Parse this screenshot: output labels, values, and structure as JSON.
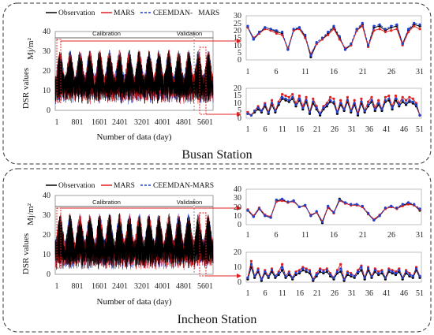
{
  "legend": [
    {
      "name": "Observation",
      "color": "#000000",
      "dash": ""
    },
    {
      "name": "MARS",
      "color": "#e02020",
      "dash": ""
    },
    {
      "name": "CEEMDAN-MARS",
      "color": "#1f3fd0",
      "dash": "3,2"
    }
  ],
  "panels": [
    {
      "station": "Busan Station",
      "legend_labels": [
        "Observation",
        "MARS",
        "CEEMDAN-   MARS"
      ],
      "calibration_label": "Calibration",
      "validation_label": "Validation",
      "ylabel": "DSR values",
      "ylabel_unit": "Mj/m²",
      "xlabel": "Number of data (day)"
    },
    {
      "station": "Incheon Station",
      "legend_labels": [
        "Observation",
        "MARS",
        "CEEMDAN-MARS"
      ],
      "calibration_label": "Calibration",
      "validation_label": "Validation",
      "ylabel": "DSR values",
      "ylabel_unit": "Mj/m²",
      "xlabel": "Number of data (day)"
    }
  ],
  "chart_data": [
    {
      "type": "line",
      "station": "Busan Station",
      "xlabel": "Number of data (day)",
      "ylabel": "DSR values (Mj/m²)",
      "ylim": [
        0,
        40
      ],
      "xlim": [
        1,
        6000
      ],
      "x_ticks": [
        1,
        801,
        1601,
        2401,
        3201,
        4001,
        4801,
        5601
      ],
      "y_ticks": [
        0,
        10,
        20,
        30,
        40
      ],
      "segments": [
        {
          "name": "Calibration"
        },
        {
          "name": "Validation"
        }
      ],
      "series": [
        {
          "name": "Observation",
          "color": "#000000"
        },
        {
          "name": "MARS",
          "color": "#e02020"
        },
        {
          "name": "CEEMDAN-   MARS",
          "color": "#1f3fd0"
        }
      ],
      "cycles": 16,
      "peak_range": [
        24,
        31
      ],
      "low_range": [
        3,
        8
      ]
    },
    {
      "type": "line",
      "station": "Busan Station",
      "x_ticks": [
        1,
        6,
        11,
        16,
        21,
        26,
        31
      ],
      "y_ticks": [
        0,
        5,
        10,
        15,
        20,
        25,
        30
      ],
      "ylim": [
        0,
        30
      ],
      "series": [
        {
          "name": "Observation",
          "values": [
            22,
            14,
            18,
            22,
            21,
            19,
            18,
            7,
            20,
            22,
            16,
            2,
            11,
            14,
            18,
            22,
            15,
            7,
            10,
            20,
            24,
            9,
            22,
            23,
            20,
            22,
            23,
            11,
            20,
            24,
            23
          ]
        },
        {
          "name": "MARS",
          "values": [
            22,
            15,
            18,
            21,
            20,
            18,
            17,
            8,
            20,
            21,
            15,
            4,
            11,
            14,
            17,
            21,
            14,
            8,
            10,
            20,
            23,
            9,
            20,
            21,
            19,
            20,
            21,
            10,
            19,
            23,
            21
          ]
        },
        {
          "name": "CEEMDAN-   MARS",
          "values": [
            23,
            14,
            19,
            22,
            21,
            20,
            19,
            7,
            21,
            22,
            17,
            3,
            12,
            15,
            19,
            23,
            16,
            7,
            11,
            21,
            25,
            10,
            23,
            24,
            21,
            23,
            24,
            11,
            21,
            25,
            24
          ]
        }
      ]
    },
    {
      "type": "line",
      "station": "Busan Station",
      "x_ticks": [
        1,
        6,
        11,
        16,
        21,
        26,
        31,
        36,
        41,
        46,
        51
      ],
      "y_ticks": [
        0,
        5,
        10,
        15,
        20
      ],
      "ylim": [
        0,
        20
      ],
      "series": [
        {
          "name": "Observation",
          "values": [
            3,
            2,
            4,
            6,
            4,
            8,
            3,
            9,
            4,
            9,
            13,
            12,
            11,
            13,
            8,
            12,
            6,
            11,
            3,
            10,
            6,
            2,
            6,
            8,
            11,
            10,
            3,
            9,
            5,
            11,
            4,
            9,
            2,
            10,
            4,
            8,
            11,
            5,
            9,
            5,
            11,
            12,
            6,
            12,
            8,
            11,
            9,
            11,
            10,
            8,
            2
          ]
        },
        {
          "name": "MARS",
          "values": [
            4,
            2,
            5,
            8,
            5,
            10,
            4,
            12,
            5,
            11,
            16,
            15,
            14,
            16,
            10,
            15,
            8,
            14,
            4,
            13,
            8,
            3,
            8,
            10,
            14,
            13,
            4,
            12,
            6,
            14,
            5,
            12,
            3,
            13,
            5,
            11,
            14,
            7,
            12,
            6,
            14,
            15,
            8,
            15,
            10,
            14,
            12,
            14,
            13,
            10,
            2
          ]
        },
        {
          "name": "CEEMDAN-   MARS",
          "values": [
            3,
            2,
            5,
            7,
            5,
            9,
            4,
            10,
            5,
            10,
            14,
            13,
            12,
            14,
            9,
            13,
            7,
            12,
            4,
            11,
            7,
            3,
            7,
            9,
            12,
            11,
            4,
            10,
            6,
            12,
            5,
            10,
            3,
            11,
            5,
            9,
            12,
            6,
            10,
            6,
            12,
            13,
            7,
            13,
            9,
            12,
            10,
            12,
            11,
            9,
            2
          ]
        }
      ]
    },
    {
      "type": "line",
      "station": "Incheon Station",
      "xlabel": "Number of data (day)",
      "ylabel": "DSR values (Mj/m²)",
      "ylim": [
        0,
        40
      ],
      "xlim": [
        1,
        6000
      ],
      "x_ticks": [
        1,
        801,
        1601,
        2401,
        3201,
        4001,
        4801,
        5601
      ],
      "y_ticks": [
        0,
        10,
        20,
        30,
        40
      ],
      "segments": [
        {
          "name": "Calibration"
        },
        {
          "name": "Validation"
        }
      ],
      "series": [
        {
          "name": "Observation",
          "color": "#000000"
        },
        {
          "name": "MARS",
          "color": "#e02020"
        },
        {
          "name": "CEEMDAN-MARS",
          "color": "#1f3fd0"
        }
      ],
      "cycles": 16,
      "peak_range": [
        24,
        31
      ],
      "low_range": [
        2,
        7
      ]
    },
    {
      "type": "line",
      "station": "Incheon Station",
      "x_ticks": [
        1,
        6,
        11,
        16,
        21,
        26,
        31
      ],
      "y_ticks": [
        0,
        10,
        20,
        30,
        40
      ],
      "ylim": [
        0,
        40
      ],
      "series": [
        {
          "name": "Observation",
          "values": [
            16,
            9,
            18,
            10,
            8,
            27,
            28,
            25,
            27,
            20,
            22,
            10,
            14,
            2,
            20,
            13,
            29,
            24,
            22,
            22,
            20,
            12,
            5,
            10,
            18,
            20,
            18,
            22,
            24,
            22,
            16
          ]
        },
        {
          "name": "MARS",
          "values": [
            17,
            10,
            19,
            11,
            9,
            26,
            27,
            25,
            26,
            20,
            21,
            11,
            14,
            4,
            19,
            13,
            27,
            24,
            22,
            22,
            20,
            12,
            6,
            11,
            18,
            20,
            18,
            21,
            23,
            22,
            17
          ]
        },
        {
          "name": "CEEMDAN-MARS",
          "values": [
            16,
            9,
            18,
            10,
            8,
            28,
            29,
            26,
            27,
            20,
            22,
            10,
            15,
            3,
            21,
            14,
            28,
            25,
            23,
            23,
            21,
            13,
            5,
            10,
            19,
            21,
            19,
            23,
            25,
            23,
            18
          ]
        }
      ]
    },
    {
      "type": "line",
      "station": "Incheon Station",
      "x_ticks": [
        1,
        6,
        11,
        16,
        21,
        26,
        31,
        36,
        41,
        46,
        51
      ],
      "y_ticks": [
        0,
        10,
        20
      ],
      "ylim": [
        0,
        20
      ],
      "series": [
        {
          "name": "Observation",
          "values": [
            2,
            10,
            3,
            7,
            1,
            6,
            3,
            7,
            3,
            5,
            8,
            3,
            5,
            2,
            5,
            6,
            8,
            7,
            6,
            1,
            4,
            7,
            6,
            7,
            4,
            2,
            6,
            7,
            1,
            5,
            4,
            3,
            6,
            8,
            2,
            8,
            3,
            7,
            5,
            6,
            2,
            7,
            6,
            5,
            7,
            2,
            6,
            4,
            3,
            8,
            3
          ]
        },
        {
          "name": "MARS",
          "values": [
            3,
            14,
            4,
            9,
            2,
            8,
            4,
            9,
            4,
            7,
            12,
            4,
            7,
            3,
            7,
            8,
            10,
            9,
            8,
            2,
            6,
            9,
            8,
            9,
            6,
            3,
            8,
            12,
            2,
            7,
            6,
            4,
            8,
            11,
            3,
            10,
            4,
            9,
            7,
            8,
            3,
            9,
            8,
            7,
            9,
            3,
            8,
            6,
            4,
            10,
            4
          ]
        },
        {
          "name": "CEEMDAN-MARS",
          "values": [
            3,
            12,
            4,
            8,
            2,
            7,
            4,
            8,
            4,
            6,
            10,
            4,
            6,
            3,
            6,
            7,
            9,
            8,
            7,
            2,
            5,
            8,
            7,
            8,
            5,
            3,
            7,
            9,
            2,
            6,
            5,
            4,
            7,
            10,
            3,
            9,
            4,
            8,
            6,
            7,
            3,
            8,
            7,
            6,
            8,
            3,
            7,
            5,
            4,
            9,
            4
          ]
        }
      ]
    }
  ]
}
